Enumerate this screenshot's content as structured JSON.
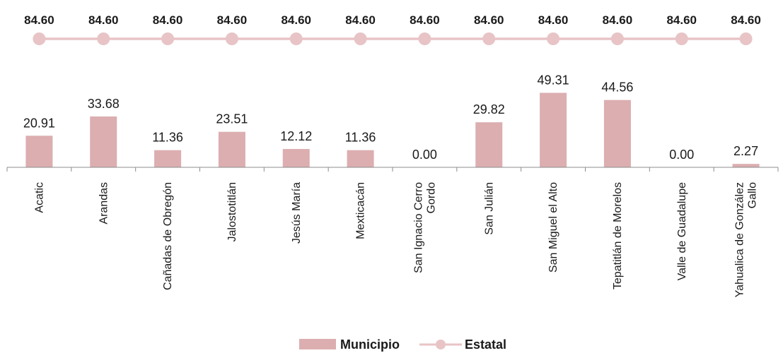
{
  "chart_data": {
    "type": "bar",
    "categories": [
      [
        "Acatic"
      ],
      [
        "Arandas"
      ],
      [
        "Cañadas de Obregón"
      ],
      [
        "Jalostotitlán"
      ],
      [
        "Jesús María"
      ],
      [
        "Mexticacán"
      ],
      [
        "San Ignacio Cerro",
        "Gordo"
      ],
      [
        "San Julián"
      ],
      [
        "San Miguel el Alto"
      ],
      [
        "Tepatitlán de Morelos"
      ],
      [
        "Valle de Guadalupe"
      ],
      [
        "Yahualica de González",
        "Gallo"
      ]
    ],
    "series": [
      {
        "name": "Municipio",
        "type": "bar",
        "color": "#dcaeb0",
        "values": [
          20.91,
          33.68,
          11.36,
          23.51,
          12.12,
          11.36,
          0.0,
          29.82,
          49.31,
          44.56,
          0.0,
          2.27
        ],
        "labels": [
          "20.91",
          "33.68",
          "11.36",
          "23.51",
          "12.12",
          "11.36",
          "0.00",
          "29.82",
          "49.31",
          "44.56",
          "0.00",
          "2.27"
        ]
      },
      {
        "name": "Estatal",
        "type": "line",
        "color": "#e8c4c6",
        "values": [
          84.6,
          84.6,
          84.6,
          84.6,
          84.6,
          84.6,
          84.6,
          84.6,
          84.6,
          84.6,
          84.6,
          84.6
        ],
        "labels": [
          "84.60",
          "84.60",
          "84.60",
          "84.60",
          "84.60",
          "84.60",
          "84.60",
          "84.60",
          "84.60",
          "84.60",
          "84.60",
          "84.60"
        ]
      }
    ],
    "legend": {
      "position": "bottom",
      "items": [
        "Municipio",
        "Estatal"
      ]
    },
    "grid": false
  }
}
